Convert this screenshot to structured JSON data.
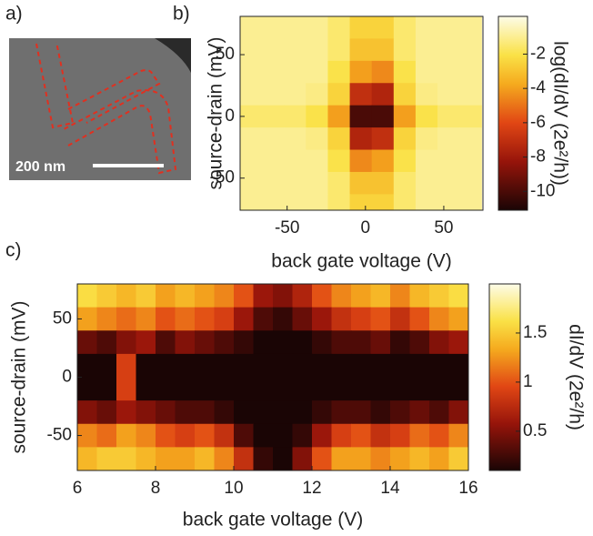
{
  "image_panel": {
    "label": "a)",
    "scale_bar": "200 nm"
  },
  "chart_data": [
    {
      "type": "heatmap",
      "label": "b)",
      "xlabel": "back gate voltage (V)",
      "ylabel": "source-drain (mV)",
      "colorbar_label": "log(dI/dV (2e²/h))",
      "x": [
        -73,
        -59,
        -45,
        -31,
        -17,
        -3,
        11,
        25,
        39,
        53,
        67
      ],
      "y": [
        72,
        54,
        36,
        18,
        0,
        -18,
        -36,
        -54,
        -72
      ],
      "z": [
        [
          -1,
          -1,
          -1,
          -1,
          -1.5,
          -2.5,
          -2.5,
          -1.5,
          -1,
          -1,
          -1
        ],
        [
          -1,
          -1,
          -1,
          -1,
          -1.5,
          -3,
          -3,
          -1.5,
          -1,
          -1,
          -1
        ],
        [
          -1,
          -1,
          -1,
          -1,
          -2,
          -4,
          -4.5,
          -2,
          -1,
          -1,
          -1
        ],
        [
          -1,
          -1,
          -1,
          -1.2,
          -2.5,
          -7,
          -7.5,
          -2.5,
          -1.2,
          -1,
          -1
        ],
        [
          -1.5,
          -1.5,
          -1.5,
          -2,
          -4,
          -10,
          -10,
          -4,
          -2,
          -1.5,
          -1.5
        ],
        [
          -1,
          -1,
          -1,
          -1.2,
          -2.5,
          -7.5,
          -7,
          -2.5,
          -1.2,
          -1,
          -1
        ],
        [
          -1,
          -1,
          -1,
          -1,
          -2,
          -4.5,
          -4,
          -2,
          -1,
          -1,
          -1
        ],
        [
          -1,
          -1,
          -1,
          -1,
          -1.5,
          -3,
          -3,
          -1.5,
          -1,
          -1,
          -1
        ],
        [
          -1,
          -1,
          -1,
          -1,
          -1.5,
          -2.5,
          -2.5,
          -1.5,
          -1,
          -1,
          -1
        ]
      ],
      "xlim": [
        -80,
        75
      ],
      "ylim": [
        -76,
        81
      ],
      "xticks": [
        -50,
        0,
        50
      ],
      "yticks": [
        50,
        0,
        -50
      ],
      "clim": [
        -11.1,
        0.2
      ],
      "cticks": [
        -2,
        -4,
        -6,
        -8,
        -10
      ]
    },
    {
      "type": "heatmap",
      "label": "c)",
      "xlabel": "back gate voltage (V)",
      "ylabel": "source-drain (mV)",
      "colorbar_label": "dI/dV (2e²/h)",
      "x": [
        6.25,
        6.75,
        7.25,
        7.75,
        8.25,
        8.75,
        9.25,
        9.75,
        10.25,
        10.75,
        11.25,
        11.75,
        12.25,
        12.75,
        13.25,
        13.75,
        14.25,
        14.75,
        15.25,
        15.75
      ],
      "y": [
        70,
        50,
        30,
        10,
        -10,
        -30,
        -50,
        -70
      ],
      "z": [
        [
          1.6,
          1.5,
          1.4,
          1.5,
          1.3,
          1.4,
          1.3,
          1.2,
          1.0,
          0.6,
          0.5,
          0.7,
          1.0,
          1.2,
          1.3,
          1.4,
          1.2,
          1.4,
          1.5,
          1.6
        ],
        [
          1.3,
          1.2,
          1.1,
          1.2,
          1.0,
          1.1,
          1.0,
          0.9,
          0.6,
          0.3,
          0.2,
          0.4,
          0.6,
          0.8,
          0.9,
          1.0,
          0.8,
          1.0,
          1.2,
          1.3
        ],
        [
          0.4,
          0.3,
          0.5,
          0.6,
          0.3,
          0.5,
          0.4,
          0.3,
          0.2,
          0.1,
          0.1,
          0.1,
          0.2,
          0.3,
          0.3,
          0.4,
          0.2,
          0.3,
          0.5,
          0.6
        ],
        [
          0.1,
          0.1,
          0.9,
          0.1,
          0.1,
          0.1,
          0.1,
          0.1,
          0.1,
          0.1,
          0.1,
          0.1,
          0.1,
          0.1,
          0.1,
          0.1,
          0.1,
          0.1,
          0.1,
          0.1
        ],
        [
          0.1,
          0.1,
          0.9,
          0.1,
          0.1,
          0.1,
          0.1,
          0.1,
          0.1,
          0.1,
          0.1,
          0.1,
          0.1,
          0.1,
          0.1,
          0.1,
          0.1,
          0.1,
          0.1,
          0.1
        ],
        [
          0.5,
          0.4,
          0.6,
          0.5,
          0.4,
          0.3,
          0.3,
          0.2,
          0.1,
          0.1,
          0.1,
          0.1,
          0.2,
          0.3,
          0.3,
          0.2,
          0.3,
          0.4,
          0.3,
          0.5
        ],
        [
          1.2,
          1.1,
          1.3,
          1.2,
          1.0,
          0.9,
          1.0,
          0.8,
          0.3,
          0.1,
          0.1,
          0.2,
          0.6,
          0.9,
          1.0,
          0.8,
          0.9,
          1.1,
          1.0,
          1.2
        ],
        [
          1.4,
          1.5,
          1.5,
          1.4,
          1.3,
          1.3,
          1.4,
          1.2,
          0.8,
          0.2,
          0.1,
          0.5,
          1.0,
          1.3,
          1.3,
          1.2,
          1.3,
          1.4,
          1.3,
          1.5
        ]
      ],
      "xlim": [
        6,
        16
      ],
      "ylim": [
        -80,
        80
      ],
      "xticks": [
        6,
        8,
        10,
        12,
        14,
        16
      ],
      "yticks": [
        50,
        0,
        -50
      ],
      "clim": [
        0.1,
        2.0
      ],
      "cticks": [
        1.5,
        1,
        0.5
      ]
    }
  ]
}
